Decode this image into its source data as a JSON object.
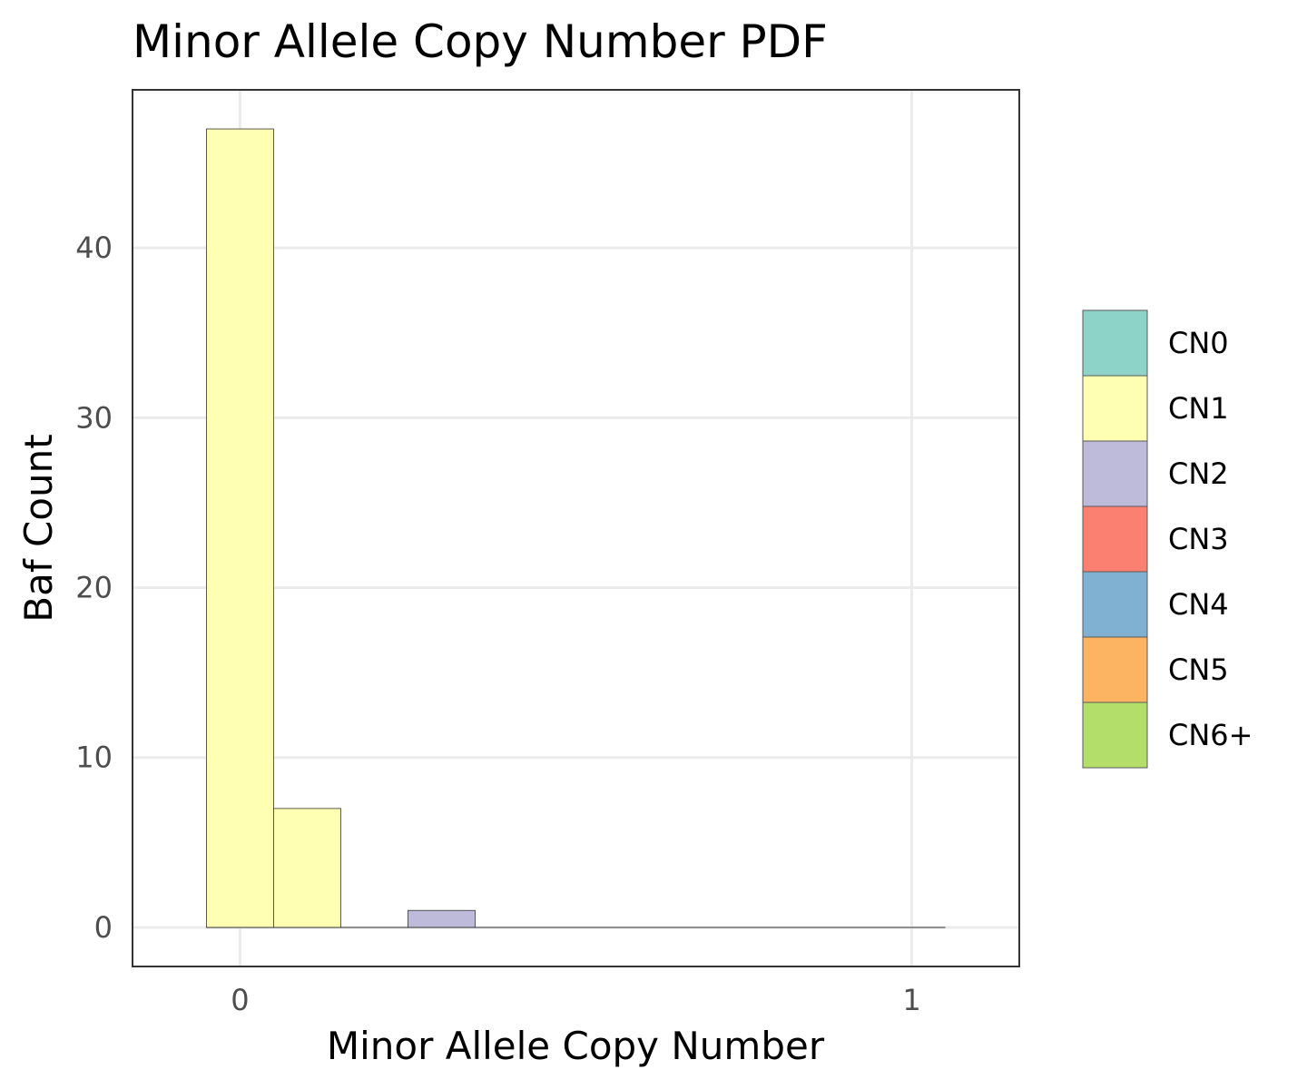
{
  "chart_data": {
    "type": "bar",
    "title": "Minor Allele Copy Number PDF",
    "xlabel": "Minor Allele Copy Number",
    "ylabel": "Baf Count",
    "xlim": [
      -0.16,
      1.16
    ],
    "ylim": [
      -2.3,
      49.3
    ],
    "x_ticks": [
      0,
      1
    ],
    "x_tick_labels": [
      "0",
      "1"
    ],
    "y_ticks": [
      0,
      10,
      20,
      30,
      40
    ],
    "y_tick_labels": [
      "0",
      "10",
      "20",
      "30",
      "40"
    ],
    "grid": true,
    "legend_position": "right",
    "bin_width": 0.1,
    "series": [
      {
        "name": "CN0",
        "color": "#8DD3C7",
        "bins": []
      },
      {
        "name": "CN1",
        "color": "#FFFFB3",
        "bins": [
          {
            "x0": -0.05,
            "x1": 0.05,
            "value": 47
          },
          {
            "x0": 0.05,
            "x1": 0.15,
            "value": 7
          }
        ]
      },
      {
        "name": "CN2",
        "color": "#BEBADA",
        "bins": [
          {
            "x0": 0.25,
            "x1": 0.35,
            "value": 1
          }
        ]
      },
      {
        "name": "CN3",
        "color": "#FB8072",
        "bins": []
      },
      {
        "name": "CN4",
        "color": "#80B1D3",
        "bins": []
      },
      {
        "name": "CN5",
        "color": "#FDB462",
        "bins": []
      },
      {
        "name": "CN6+",
        "color": "#B3DE69",
        "bins": []
      }
    ],
    "baseline_range": [
      -0.05,
      1.05
    ]
  }
}
